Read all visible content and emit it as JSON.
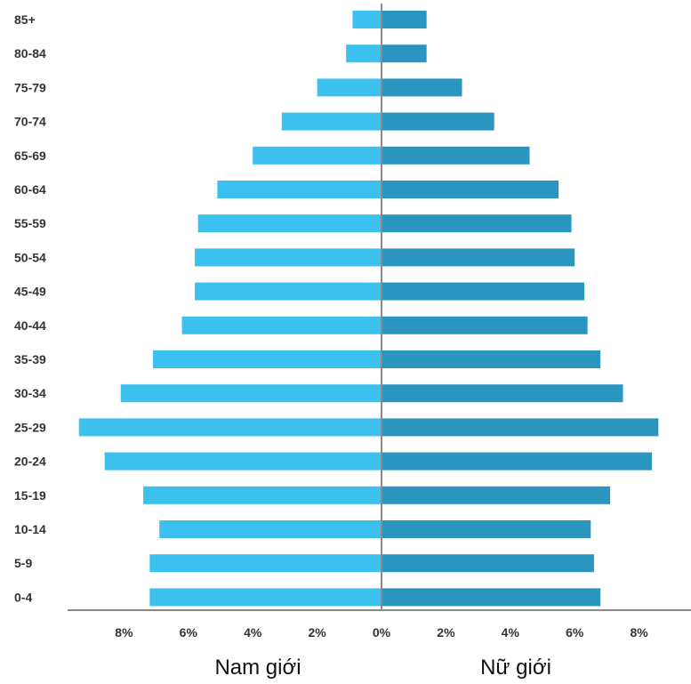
{
  "chart_data": {
    "type": "bar",
    "orientation": "horizontal",
    "layout": "population-pyramid",
    "categories": [
      "85+",
      "80-84",
      "75-79",
      "70-74",
      "65-69",
      "60-64",
      "55-59",
      "50-54",
      "45-49",
      "40-44",
      "35-39",
      "30-34",
      "25-29",
      "20-24",
      "15-19",
      "10-14",
      "5-9",
      "0-4"
    ],
    "series": [
      {
        "name": "Nam giới",
        "side": "left",
        "color": "#3cc0ee",
        "values": [
          0.9,
          1.1,
          2.0,
          3.1,
          4.0,
          5.1,
          5.7,
          5.8,
          5.8,
          6.2,
          7.1,
          8.1,
          9.4,
          8.6,
          7.4,
          6.9,
          7.2,
          7.2
        ]
      },
      {
        "name": "Nữ giới",
        "side": "right",
        "color": "#2a96bf",
        "values": [
          1.4,
          1.4,
          2.5,
          3.5,
          4.6,
          5.5,
          5.9,
          6.0,
          6.3,
          6.4,
          6.8,
          7.5,
          8.6,
          8.4,
          7.1,
          6.5,
          6.6,
          6.8
        ]
      }
    ],
    "x_tick_labels": [
      "8%",
      "6%",
      "4%",
      "2%",
      "0%",
      "2%",
      "4%",
      "6%",
      "8%"
    ],
    "xlim": [
      -9.5,
      9.5
    ],
    "unit": "%",
    "grid": false,
    "legend": "none"
  },
  "labels": {
    "male": "Nam giới",
    "female": "Nữ giới"
  }
}
